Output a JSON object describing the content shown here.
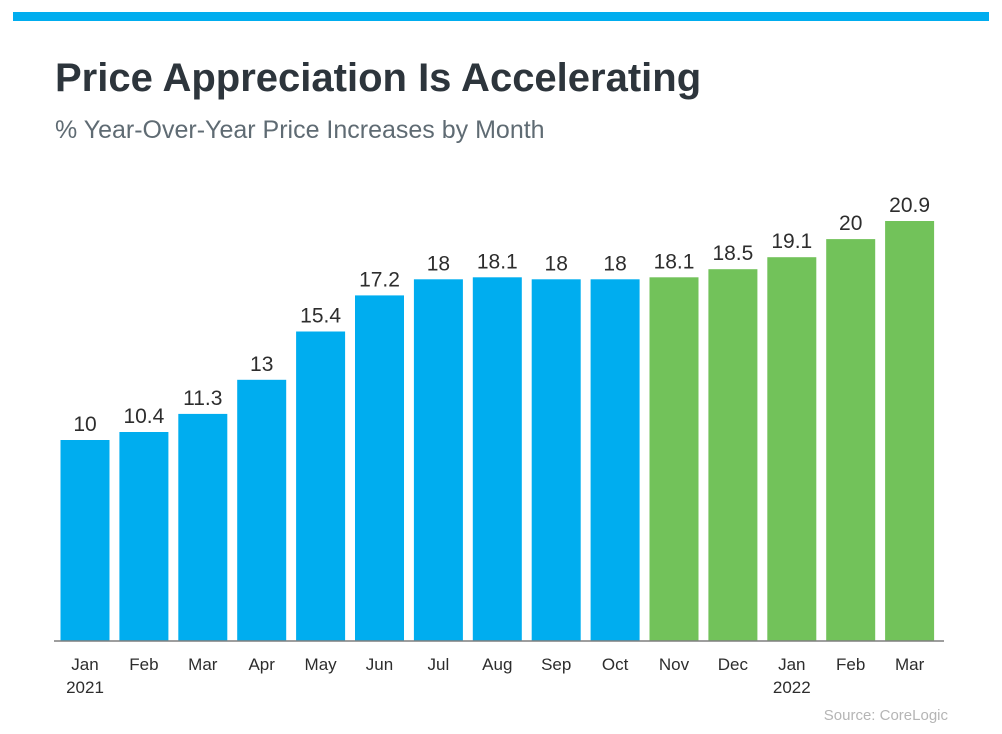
{
  "header": {
    "title": "Price Appreciation Is Accelerating",
    "subtitle": "% Year-Over-Year Price Increases by Month",
    "accent_color": "#00adef"
  },
  "footer": {
    "source": "Source: CoreLogic"
  },
  "chart_data": {
    "type": "bar",
    "title": "Price Appreciation Is Accelerating",
    "subtitle": "% Year-Over-Year Price Increases by Month",
    "categories": [
      "Jan",
      "Feb",
      "Mar",
      "Apr",
      "May",
      "Jun",
      "Jul",
      "Aug",
      "Sep",
      "Oct",
      "Nov",
      "Dec",
      "Jan",
      "Feb",
      "Mar"
    ],
    "year_labels": [
      "2021",
      "",
      "",
      "",
      "",
      "",
      "",
      "",
      "",
      "",
      "",
      "",
      "2022",
      "",
      ""
    ],
    "values": [
      10,
      10.4,
      11.3,
      13,
      15.4,
      17.2,
      18,
      18.1,
      18,
      18,
      18.1,
      18.5,
      19.1,
      20,
      20.9
    ],
    "value_labels": [
      "10",
      "10.4",
      "11.3",
      "13",
      "15.4",
      "17.2",
      "18",
      "18.1",
      "18",
      "18",
      "18.1",
      "18.5",
      "19.1",
      "20",
      "20.9"
    ],
    "bar_colors": [
      "#00adef",
      "#00adef",
      "#00adef",
      "#00adef",
      "#00adef",
      "#00adef",
      "#00adef",
      "#00adef",
      "#00adef",
      "#00adef",
      "#72c25a",
      "#72c25a",
      "#72c25a",
      "#72c25a",
      "#72c25a"
    ],
    "ylim": [
      0,
      20.9
    ],
    "xlabel": "",
    "ylabel": "",
    "grid": false,
    "legend": "none"
  }
}
